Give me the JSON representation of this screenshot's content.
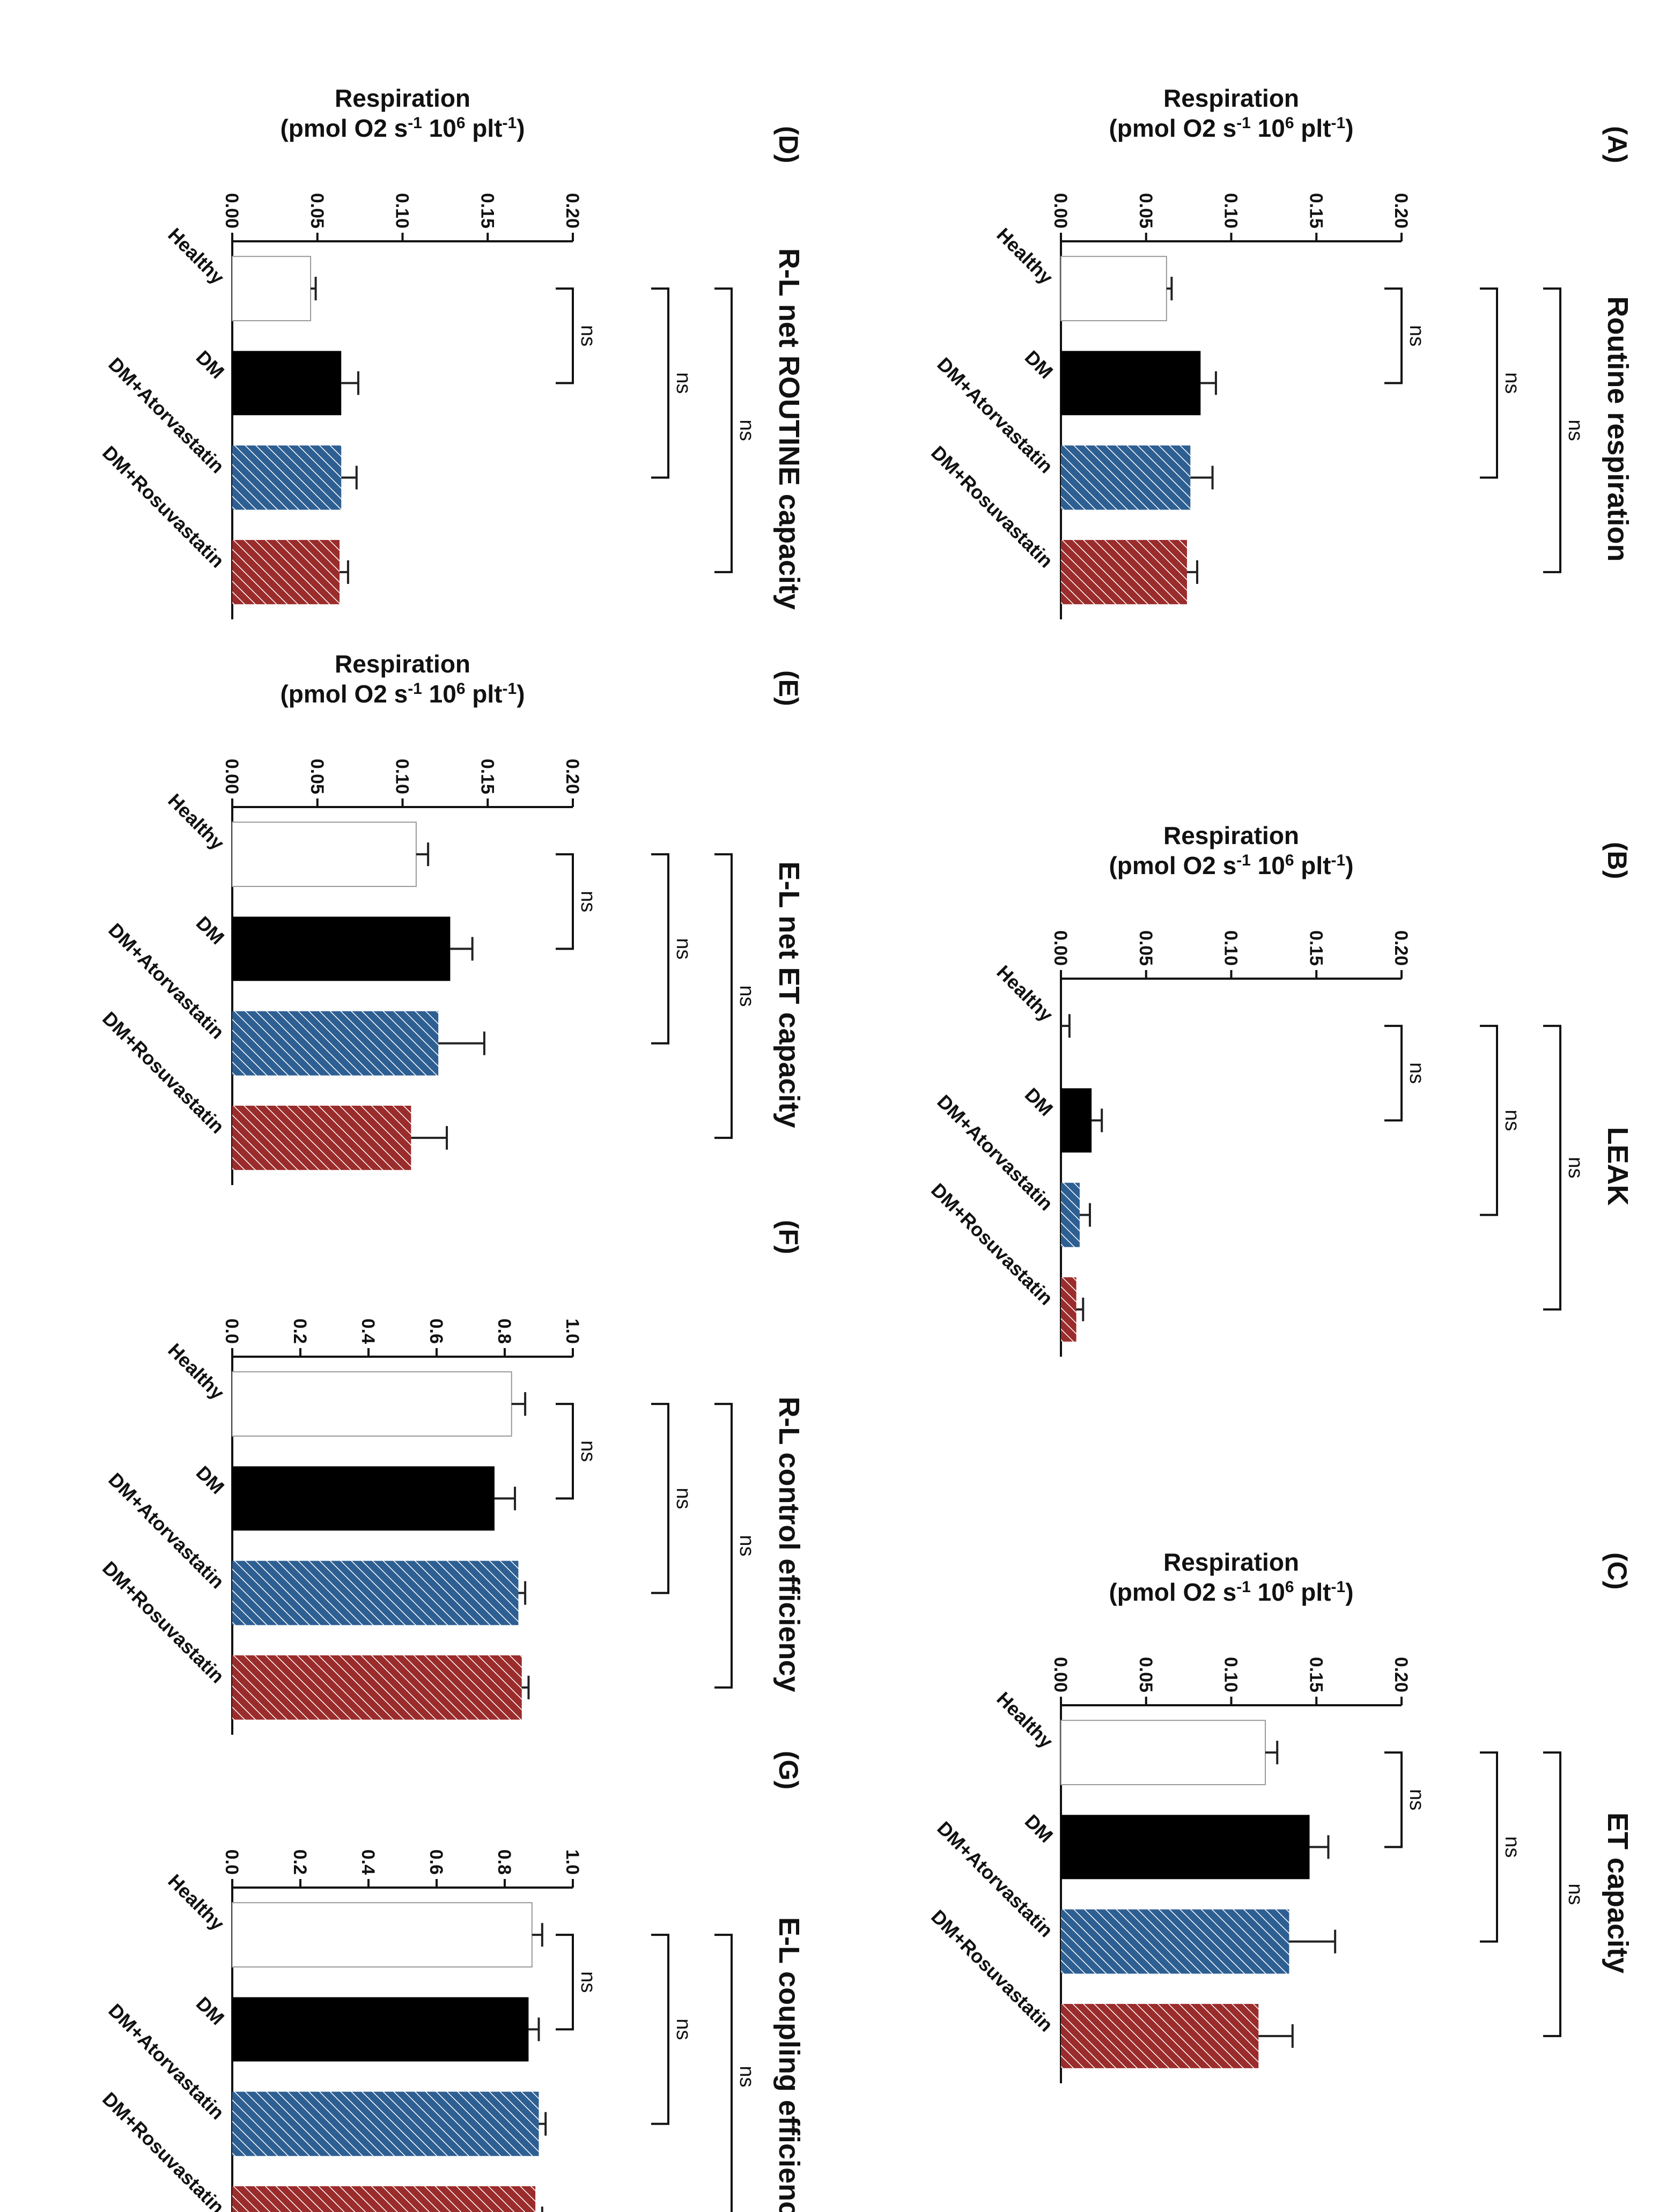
{
  "figure": {
    "categories": [
      "Healthy",
      "DM",
      "DM+Atorvastatin",
      "DM+Rosuvastatin"
    ],
    "ylabel_line1": "Respiration",
    "ylabel_line2": "(pmol O2 s",
    "ylabel_sup1": "-1",
    "ylabel_mid": " 10",
    "ylabel_sup2": "6",
    "ylabel_end": " plt",
    "ylabel_sup3": "-1",
    "ylabel_close": ")",
    "series_colors": {
      "Healthy": "#ffffff",
      "DM": "#000000",
      "DM+Atorvastatin": "#2e5f92",
      "DM+Rosuvastatin": "#9b2c2c"
    },
    "bracket_label": "ns"
  },
  "chart_data": [
    {
      "panel": "(A)",
      "title": "Routine respiration",
      "type": "bar",
      "categories": [
        "Healthy",
        "DM",
        "DM+Atorvastatin",
        "DM+Rosuvastatin"
      ],
      "values": [
        0.062,
        0.082,
        0.076,
        0.074
      ],
      "errors": [
        0.003,
        0.009,
        0.013,
        0.006
      ],
      "ylim": [
        0,
        0.2
      ],
      "yticks": [
        "0.00",
        "0.05",
        "0.10",
        "0.15",
        "0.20"
      ],
      "ylabel": "Respiration (pmol O2 s-1 106 plt-1)",
      "brackets": [
        {
          "from": 0,
          "to": 1,
          "label": "ns"
        },
        {
          "from": 0,
          "to": 2,
          "label": "ns"
        },
        {
          "from": 0,
          "to": 3,
          "label": "ns"
        }
      ]
    },
    {
      "panel": "(B)",
      "title": "LEAK",
      "type": "bar",
      "categories": [
        "Healthy",
        "DM",
        "DM+Atorvastatin",
        "DM+Rosuvastatin"
      ],
      "values": [
        0.0,
        0.018,
        0.011,
        0.009
      ],
      "errors": [
        0.005,
        0.006,
        0.006,
        0.004
      ],
      "ylim": [
        0,
        0.2
      ],
      "yticks": [
        "0.00",
        "0.05",
        "0.10",
        "0.15",
        "0.20"
      ],
      "ylabel": "Respiration (pmol O2 s-1 106 plt-1)",
      "brackets": [
        {
          "from": 0,
          "to": 1,
          "label": "ns"
        },
        {
          "from": 0,
          "to": 2,
          "label": "ns"
        },
        {
          "from": 0,
          "to": 3,
          "label": "ns"
        }
      ]
    },
    {
      "panel": "(C)",
      "title": "ET capacity",
      "type": "bar",
      "categories": [
        "Healthy",
        "DM",
        "DM+Atorvastatin",
        "DM+Rosuvastatin"
      ],
      "values": [
        0.12,
        0.146,
        0.134,
        0.116
      ],
      "errors": [
        0.007,
        0.011,
        0.027,
        0.02
      ],
      "ylim": [
        0,
        0.2
      ],
      "yticks": [
        "0.00",
        "0.05",
        "0.10",
        "0.15",
        "0.20"
      ],
      "ylabel": "Respiration (pmol O2 s-1 106 plt-1)",
      "brackets": [
        {
          "from": 0,
          "to": 1,
          "label": "ns"
        },
        {
          "from": 0,
          "to": 2,
          "label": "ns"
        },
        {
          "from": 0,
          "to": 3,
          "label": "ns"
        }
      ]
    },
    {
      "panel": "(D)",
      "title": "R-L net ROUTINE capacity",
      "type": "bar",
      "categories": [
        "Healthy",
        "DM",
        "DM+Atorvastatin",
        "DM+Rosuvastatin"
      ],
      "values": [
        0.046,
        0.064,
        0.064,
        0.063
      ],
      "errors": [
        0.003,
        0.01,
        0.009,
        0.005
      ],
      "ylim": [
        0,
        0.2
      ],
      "yticks": [
        "0.00",
        "0.05",
        "0.10",
        "0.15",
        "0.20"
      ],
      "ylabel": "Respiration (pmol O2 s-1 106 plt-1)",
      "brackets": [
        {
          "from": 0,
          "to": 1,
          "label": "ns"
        },
        {
          "from": 0,
          "to": 2,
          "label": "ns"
        },
        {
          "from": 0,
          "to": 3,
          "label": "ns"
        }
      ]
    },
    {
      "panel": "(E)",
      "title": "E-L net ET capacity",
      "type": "bar",
      "categories": [
        "Healthy",
        "DM",
        "DM+Atorvastatin",
        "DM+Rosuvastatin"
      ],
      "values": [
        0.108,
        0.128,
        0.121,
        0.105
      ],
      "errors": [
        0.007,
        0.013,
        0.027,
        0.021
      ],
      "ylim": [
        0,
        0.2
      ],
      "yticks": [
        "0.00",
        "0.05",
        "0.10",
        "0.15",
        "0.20"
      ],
      "ylabel": "Respiration (pmol O2 s-1 106 plt-1)",
      "brackets": [
        {
          "from": 0,
          "to": 1,
          "label": "ns"
        },
        {
          "from": 0,
          "to": 2,
          "label": "ns"
        },
        {
          "from": 0,
          "to": 3,
          "label": "ns"
        }
      ]
    },
    {
      "panel": "(F)",
      "title": "R-L control efficiency",
      "type": "bar",
      "categories": [
        "Healthy",
        "DM",
        "DM+Atorvastatin",
        "DM+Rosuvastatin"
      ],
      "values": [
        0.82,
        0.77,
        0.84,
        0.85
      ],
      "errors": [
        0.04,
        0.06,
        0.02,
        0.02
      ],
      "ylim": [
        0,
        1
      ],
      "yticks": [
        "0.0",
        "0.2",
        "0.4",
        "0.6",
        "0.8",
        "1.0"
      ],
      "ylabel": "",
      "brackets": [
        {
          "from": 0,
          "to": 1,
          "label": "ns"
        },
        {
          "from": 0,
          "to": 2,
          "label": "ns"
        },
        {
          "from": 0,
          "to": 3,
          "label": "ns"
        }
      ]
    },
    {
      "panel": "(G)",
      "title": "E-L coupling efficiency",
      "type": "bar",
      "categories": [
        "Healthy",
        "DM",
        "DM+Atorvastatin",
        "DM+Rosuvastatin"
      ],
      "values": [
        0.88,
        0.87,
        0.9,
        0.89
      ],
      "errors": [
        0.03,
        0.03,
        0.02,
        0.02
      ],
      "ylim": [
        0,
        1
      ],
      "yticks": [
        "0.0",
        "0.2",
        "0.4",
        "0.6",
        "0.8",
        "1.0"
      ],
      "ylabel": "",
      "brackets": [
        {
          "from": 0,
          "to": 1,
          "label": "ns"
        },
        {
          "from": 0,
          "to": 2,
          "label": "ns"
        },
        {
          "from": 0,
          "to": 3,
          "label": "ns"
        }
      ]
    }
  ]
}
